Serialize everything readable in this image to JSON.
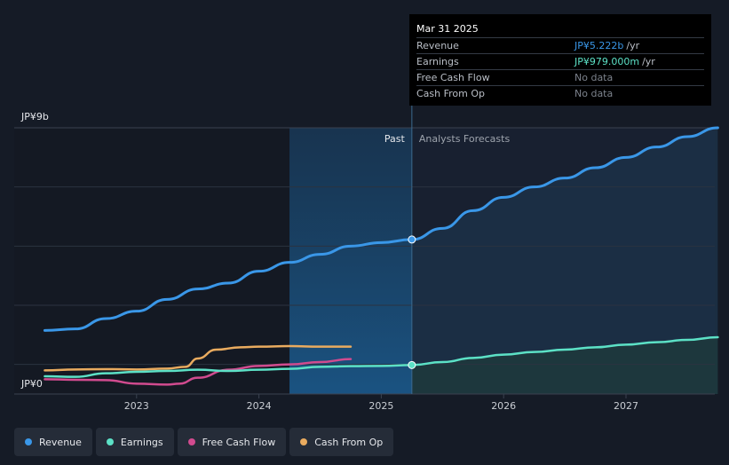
{
  "chart_data": {
    "type": "line",
    "currency_axis": {
      "top_label": "JP¥9b",
      "bottom_label": "JP¥0",
      "ylim": [
        0,
        9
      ]
    },
    "x_ticks": [
      "2023",
      "2024",
      "2025",
      "2026",
      "2027"
    ],
    "xlim": [
      2022.2,
      2027.75
    ],
    "divider_x": 2025.25,
    "shade_start": 2024.25,
    "past_label": "Past",
    "forecast_label": "Analysts Forecasts",
    "series": [
      {
        "name": "Revenue",
        "color": "#3a97e8",
        "points": [
          [
            2022.25,
            2.15
          ],
          [
            2022.5,
            2.2
          ],
          [
            2022.75,
            2.55
          ],
          [
            2023.0,
            2.8
          ],
          [
            2023.25,
            3.2
          ],
          [
            2023.5,
            3.55
          ],
          [
            2023.75,
            3.75
          ],
          [
            2024.0,
            4.15
          ],
          [
            2024.25,
            4.45
          ],
          [
            2024.5,
            4.72
          ],
          [
            2024.75,
            5.0
          ],
          [
            2025.0,
            5.12
          ],
          [
            2025.25,
            5.222
          ],
          [
            2025.5,
            5.6
          ],
          [
            2025.75,
            6.2
          ],
          [
            2026.0,
            6.65
          ],
          [
            2026.25,
            7.0
          ],
          [
            2026.5,
            7.3
          ],
          [
            2026.75,
            7.65
          ],
          [
            2027.0,
            8.0
          ],
          [
            2027.25,
            8.35
          ],
          [
            2027.5,
            8.7
          ],
          [
            2027.75,
            9.0
          ]
        ]
      },
      {
        "name": "Earnings",
        "color": "#5ce1c6",
        "points": [
          [
            2022.25,
            0.6
          ],
          [
            2022.5,
            0.58
          ],
          [
            2022.75,
            0.7
          ],
          [
            2023.0,
            0.75
          ],
          [
            2023.25,
            0.78
          ],
          [
            2023.5,
            0.82
          ],
          [
            2023.75,
            0.78
          ],
          [
            2024.0,
            0.82
          ],
          [
            2024.25,
            0.85
          ],
          [
            2024.5,
            0.92
          ],
          [
            2024.75,
            0.94
          ],
          [
            2025.0,
            0.95
          ],
          [
            2025.25,
            0.979
          ],
          [
            2025.5,
            1.08
          ],
          [
            2025.75,
            1.22
          ],
          [
            2026.0,
            1.33
          ],
          [
            2026.25,
            1.42
          ],
          [
            2026.5,
            1.5
          ],
          [
            2026.75,
            1.58
          ],
          [
            2027.0,
            1.67
          ],
          [
            2027.25,
            1.75
          ],
          [
            2027.5,
            1.83
          ],
          [
            2027.75,
            1.92
          ]
        ]
      },
      {
        "name": "Free Cash Flow",
        "color": "#d14b8f",
        "points": [
          [
            2022.25,
            0.5
          ],
          [
            2022.5,
            0.48
          ],
          [
            2022.75,
            0.47
          ],
          [
            2023.0,
            0.35
          ],
          [
            2023.25,
            0.32
          ],
          [
            2023.35,
            0.35
          ],
          [
            2023.5,
            0.55
          ],
          [
            2023.75,
            0.82
          ],
          [
            2024.0,
            0.95
          ],
          [
            2024.25,
            1.0
          ],
          [
            2024.5,
            1.08
          ],
          [
            2024.75,
            1.18
          ]
        ]
      },
      {
        "name": "Cash From Op",
        "color": "#e9ab5f",
        "points": [
          [
            2022.25,
            0.8
          ],
          [
            2022.5,
            0.83
          ],
          [
            2022.75,
            0.84
          ],
          [
            2023.0,
            0.83
          ],
          [
            2023.25,
            0.86
          ],
          [
            2023.4,
            0.92
          ],
          [
            2023.5,
            1.2
          ],
          [
            2023.65,
            1.5
          ],
          [
            2023.85,
            1.58
          ],
          [
            2024.0,
            1.6
          ],
          [
            2024.25,
            1.62
          ],
          [
            2024.5,
            1.6
          ],
          [
            2024.75,
            1.6
          ]
        ]
      }
    ],
    "markers": [
      {
        "series": "Revenue",
        "x": 2025.25,
        "y": 5.222
      },
      {
        "series": "Earnings",
        "x": 2025.25,
        "y": 0.979
      }
    ]
  },
  "tooltip": {
    "date": "Mar 31 2025",
    "rows": [
      {
        "label": "Revenue",
        "value": "JP¥5.222b",
        "unit": "/yr",
        "color": "#3a97e8"
      },
      {
        "label": "Earnings",
        "value": "JP¥979.000m",
        "unit": "/yr",
        "color": "#5ce1c6"
      },
      {
        "label": "Free Cash Flow",
        "value": "No data",
        "unit": "",
        "color": "#7c828c"
      },
      {
        "label": "Cash From Op",
        "value": "No data",
        "unit": "",
        "color": "#7c828c"
      }
    ]
  },
  "legend": [
    {
      "label": "Revenue",
      "color": "#3a97e8"
    },
    {
      "label": "Earnings",
      "color": "#5ce1c6"
    },
    {
      "label": "Free Cash Flow",
      "color": "#d14b8f"
    },
    {
      "label": "Cash From Op",
      "color": "#e9ab5f"
    }
  ]
}
